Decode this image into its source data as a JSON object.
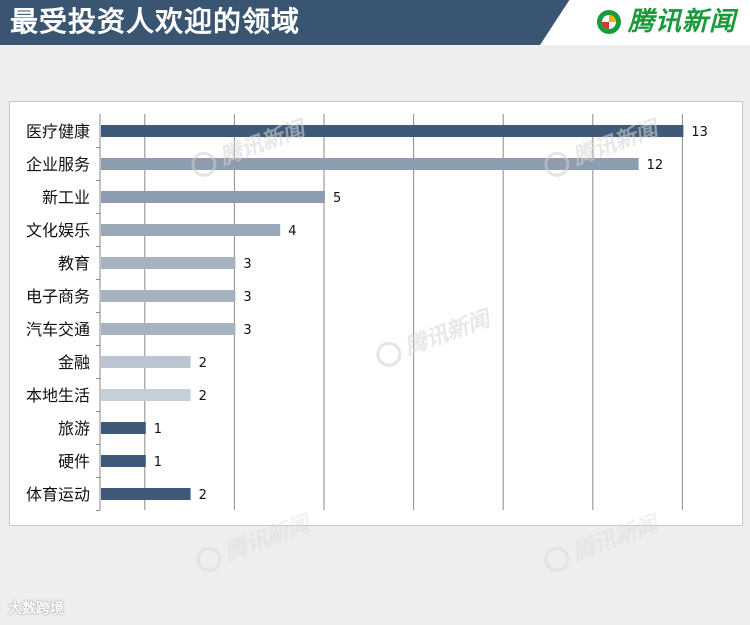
{
  "header": {
    "title": "最受投资人欢迎的领域",
    "brand": "腾讯新闻"
  },
  "colors": {
    "header_bg": "#3a5572",
    "brand_green": "#1a9a3a",
    "bar_dark": "#3f5a78",
    "bar_mid": "#8d9cae",
    "bar_light": "#c6ceda"
  },
  "chart_data": {
    "type": "bar",
    "orientation": "horizontal",
    "title": "",
    "xlabel": "",
    "ylabel": "",
    "xlim": [
      0,
      14
    ],
    "grid": true,
    "categories": [
      "医疗健康",
      "企业服务",
      "新工业",
      "文化娱乐",
      "教育",
      "电子商务",
      "汽车交通",
      "金融",
      "本地生活",
      "旅游",
      "硬件",
      "体育运动"
    ],
    "values": [
      13,
      12,
      5,
      4,
      3,
      3,
      3,
      2,
      2,
      1,
      1,
      2
    ],
    "bar_colors": [
      "#3f5a78",
      "#8d9cae",
      "#8d9cae",
      "#9aa8b8",
      "#a7b2c1",
      "#a7b2c1",
      "#a7b2c1",
      "#bcc5d1",
      "#c6ceda",
      "#3f5a78",
      "#3f5a78",
      "#3f5a78"
    ]
  },
  "watermark": {
    "text": "腾讯新闻",
    "bottom_text": "大数跨境"
  }
}
